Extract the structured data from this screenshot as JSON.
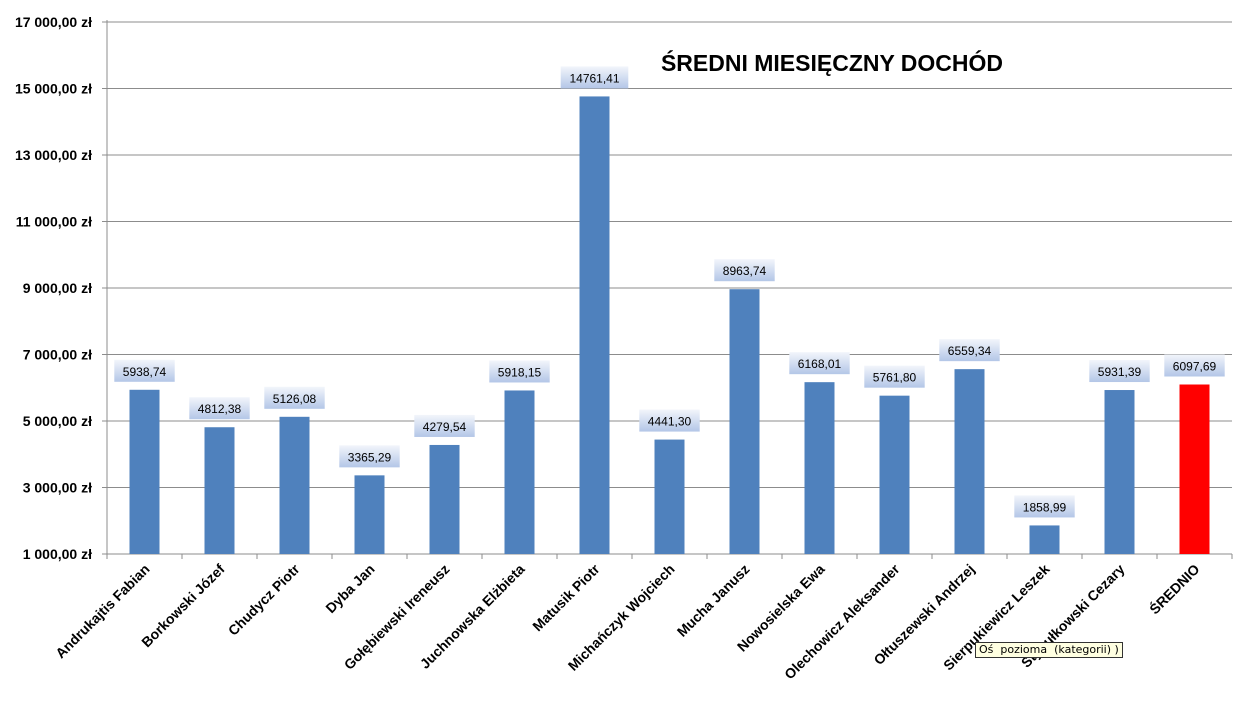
{
  "chart_data": {
    "type": "bar",
    "title": "ŚREDNI MIESIĘCZNY DOCHÓD",
    "xlabel": "",
    "ylabel": "",
    "ylim": [
      1000,
      17000
    ],
    "yticks": [
      1000,
      3000,
      5000,
      7000,
      9000,
      11000,
      13000,
      15000,
      17000
    ],
    "ytick_labels": [
      "1 000,00 zł",
      "3 000,00 zł",
      "5 000,00 zł",
      "7 000,00 zł",
      "9 000,00 zł",
      "11 000,00 zł",
      "13 000,00 zł",
      "15 000,00 zł",
      "17 000,00 zł"
    ],
    "grid": true,
    "categories": [
      "Andrukajtis Fabian",
      "Borkowski Józef",
      "Chudycz Piotr",
      "Dyba Jan",
      "Gołębiewski Ireneusz",
      "Juchnowska Elżbieta",
      "Matusik Piotr",
      "Michańczyk Wojciech",
      "Mucha Janusz",
      "Nowosielska Ewa",
      "Olechowicz Aleksander",
      "Ołtuszewski Andrzej",
      "Sierpukiewicz Leszek",
      "Stypułkowski Cezary",
      "ŚREDNIO"
    ],
    "values": [
      5938.74,
      4812.38,
      5126.08,
      3365.29,
      4279.54,
      5918.15,
      14761.41,
      4441.3,
      8963.74,
      6168.01,
      5761.8,
      6559.34,
      1858.99,
      5931.39,
      6097.69
    ],
    "value_labels": [
      "5938,74",
      "4812,38",
      "5126,08",
      "3365,29",
      "4279,54",
      "5918,15",
      "14761,41",
      "4441,30",
      "8963,74",
      "6168,01",
      "5761,80",
      "6559,34",
      "1858,99",
      "5931,39",
      "6097,69"
    ],
    "colors": {
      "bar": "#4f81bd",
      "highlight_bar": "#ff0000",
      "grid": "#8c8c8c",
      "label_box_top": "#f2f5fb",
      "label_box_bottom": "#b3c6e7"
    },
    "highlight_index": 14
  },
  "tooltip": {
    "text": "Oś  pozioma  (kategorii) )"
  }
}
